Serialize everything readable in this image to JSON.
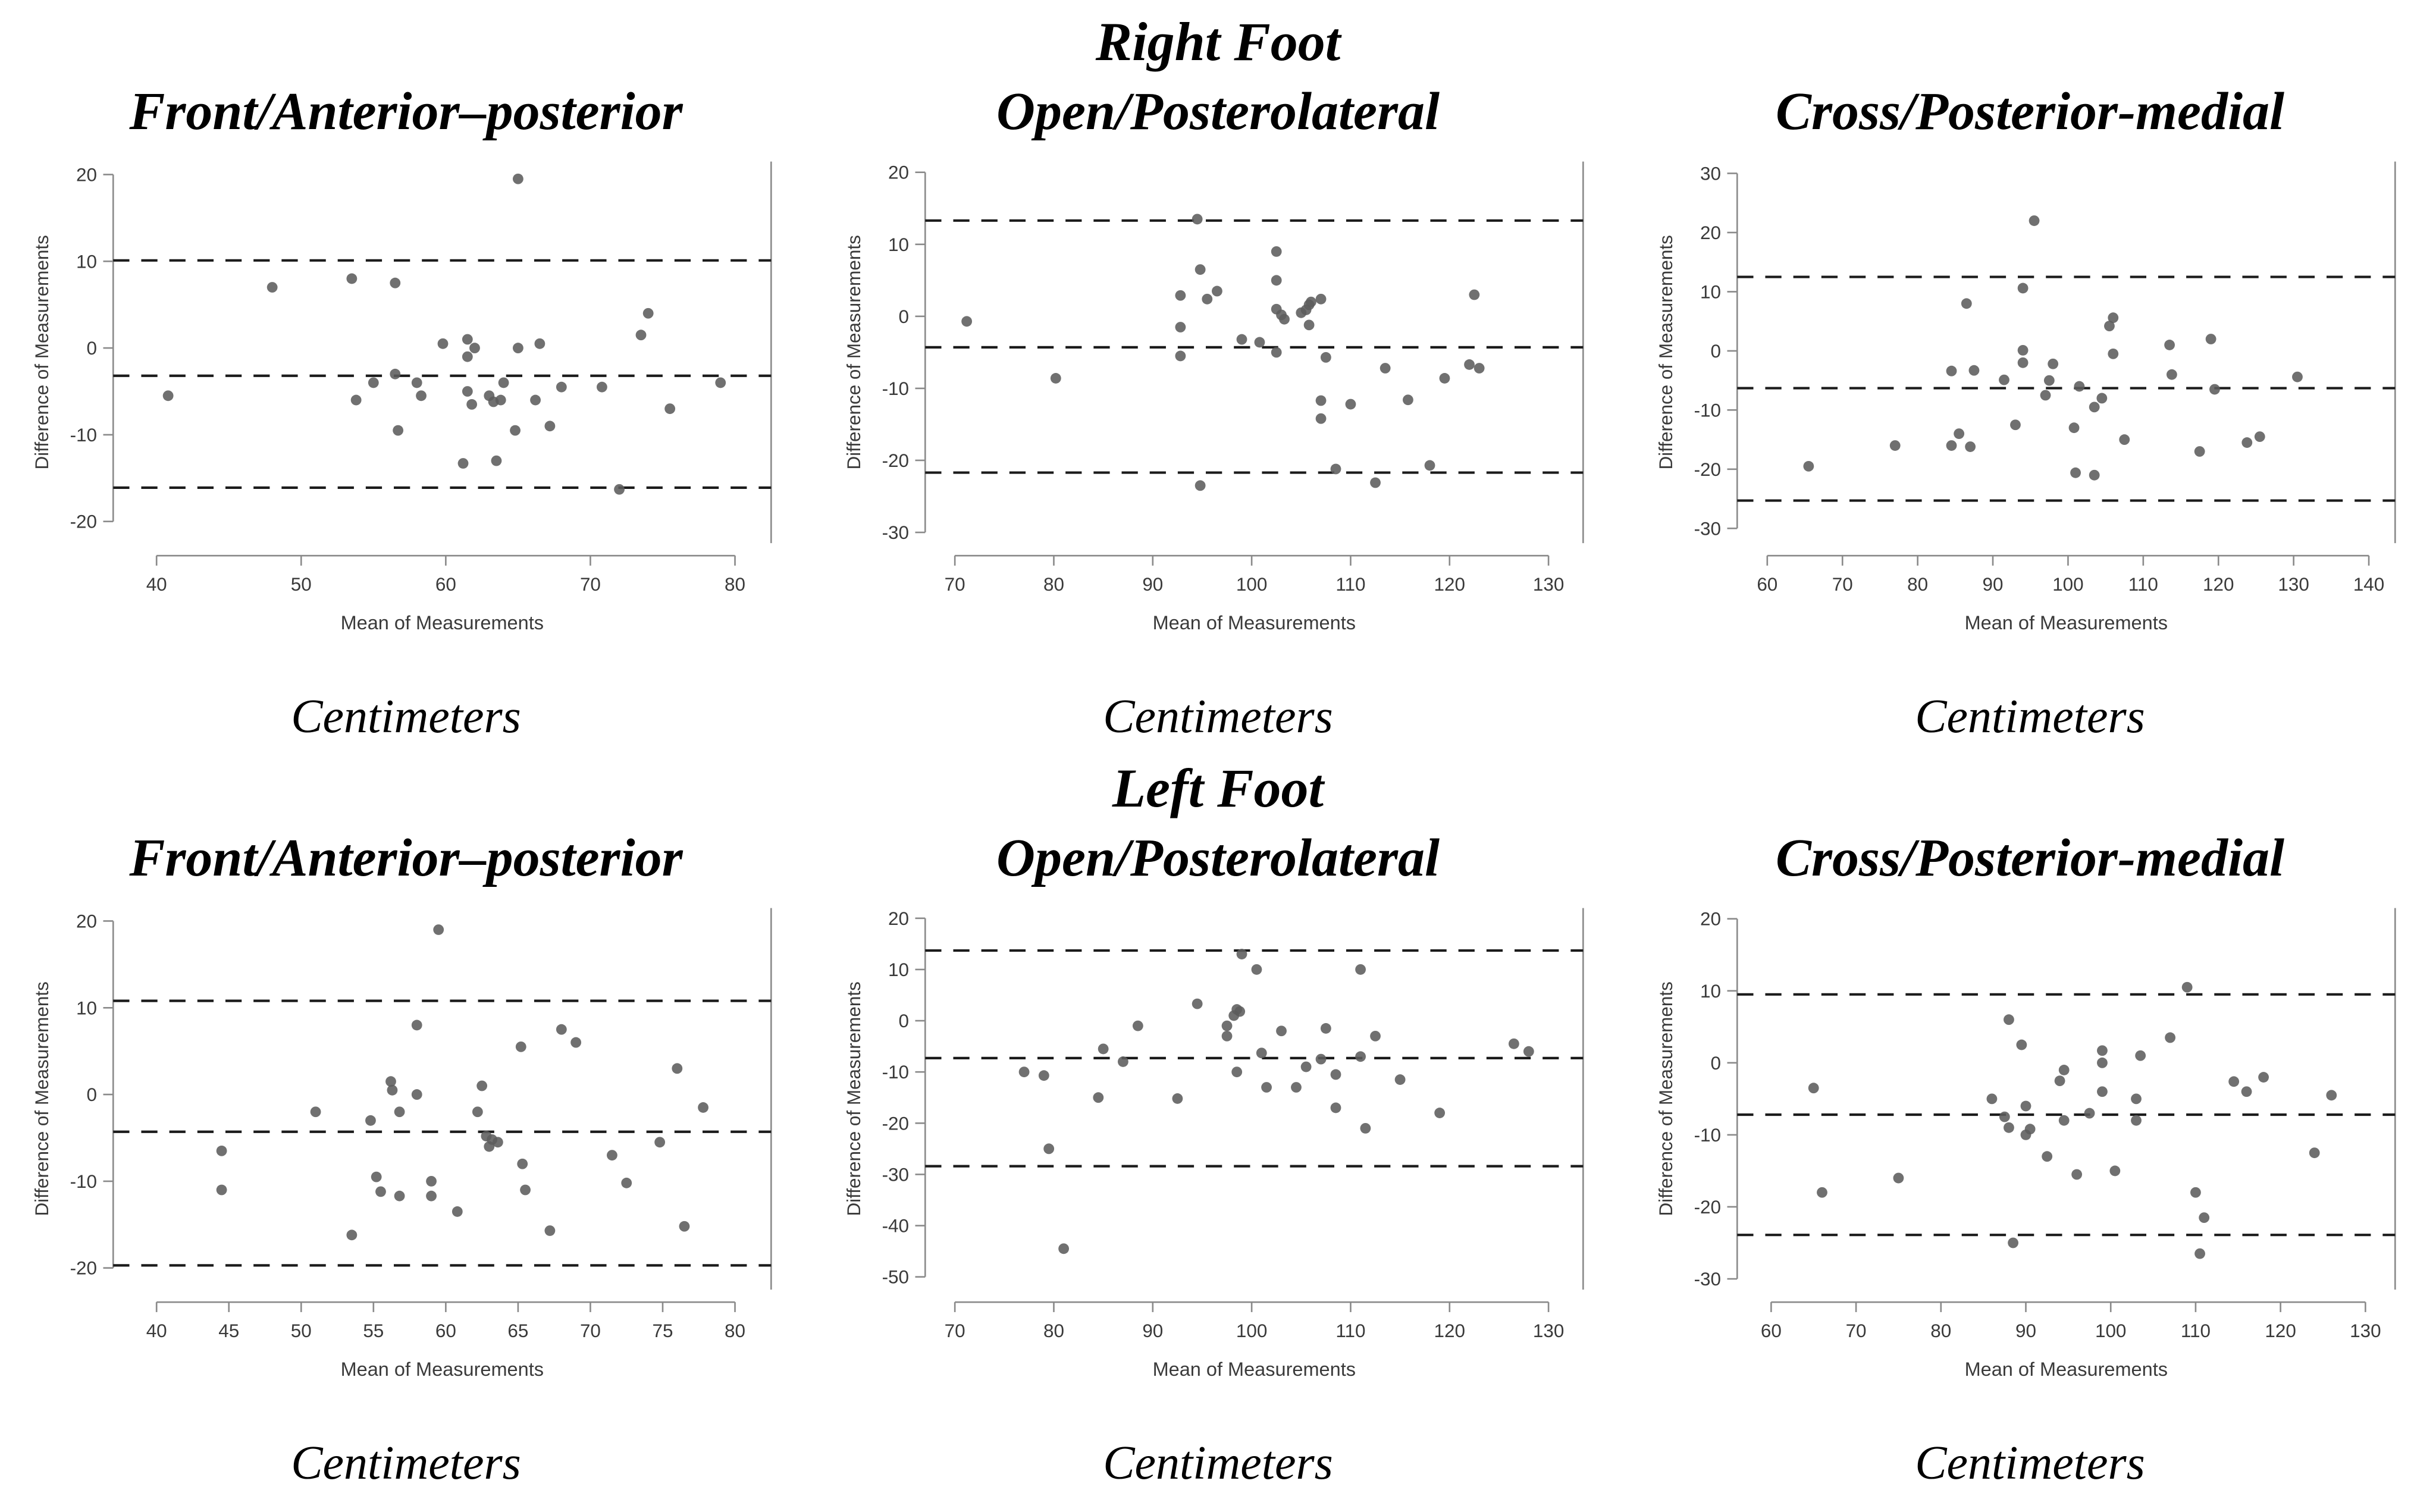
{
  "figure": {
    "row_headers": [
      "Right Foot",
      "Left Foot"
    ],
    "caption": "Centimeters",
    "xlabel": "Mean of Measurements",
    "ylabel": "Difference of Measurements",
    "colors": {
      "background": "#ffffff",
      "point": "#5c5c5c",
      "dashed_line": "#1b1b1b",
      "axis_line": "#8a8a8a",
      "tick_text": "#3a3a3a",
      "title_text": "#000000"
    }
  },
  "chart_data": [
    {
      "type": "scatter",
      "foot": "Right Foot",
      "title": "Front/Anterior–posterior",
      "xlabel": "Mean of Measurements",
      "ylabel": "Difference of Measurements",
      "units": "Centimeters",
      "xlim": [
        37,
        82.5
      ],
      "xticks": [
        40,
        50,
        60,
        70,
        80
      ],
      "ylim": [
        -22.5,
        21.5
      ],
      "yticks": [
        -20,
        -10,
        0,
        10,
        20
      ],
      "dashed_lines": {
        "upper_loa": 10.1,
        "mean": -3.2,
        "lower_loa": -16.1
      },
      "points": [
        [
          40.8,
          -5.5
        ],
        [
          48,
          7
        ],
        [
          53.5,
          8
        ],
        [
          56.5,
          7.5
        ],
        [
          65,
          19.5
        ],
        [
          74,
          4
        ],
        [
          73.5,
          1.5
        ],
        [
          59.8,
          0.5
        ],
        [
          61.5,
          1
        ],
        [
          62,
          0
        ],
        [
          61.5,
          -1
        ],
        [
          65,
          0
        ],
        [
          66.5,
          0.5
        ],
        [
          53.8,
          -6
        ],
        [
          55,
          -4
        ],
        [
          56.5,
          -3
        ],
        [
          58,
          -4
        ],
        [
          58.3,
          -5.5
        ],
        [
          61.5,
          -5
        ],
        [
          61.8,
          -6.5
        ],
        [
          63,
          -5.5
        ],
        [
          63.3,
          -6.2
        ],
        [
          63.8,
          -6
        ],
        [
          64,
          -4
        ],
        [
          66.2,
          -6
        ],
        [
          68,
          -4.5
        ],
        [
          70.8,
          -4.5
        ],
        [
          79,
          -4
        ],
        [
          75.5,
          -7
        ],
        [
          67.2,
          -9
        ],
        [
          64.8,
          -9.5
        ],
        [
          56.7,
          -9.5
        ],
        [
          61.2,
          -13.3
        ],
        [
          63.5,
          -13
        ],
        [
          72,
          -16.3
        ]
      ]
    },
    {
      "type": "scatter",
      "foot": "Right Foot",
      "title": "Open/Posterolateral",
      "xlabel": "Mean of Measurements",
      "ylabel": "Difference of Measurements",
      "units": "Centimeters",
      "xlim": [
        67,
        133.5
      ],
      "xticks": [
        70,
        80,
        90,
        100,
        110,
        120,
        130
      ],
      "ylim": [
        -31.5,
        21.5
      ],
      "yticks": [
        -30,
        -20,
        -10,
        0,
        10,
        20
      ],
      "dashed_lines": {
        "upper_loa": 13.3,
        "mean": -4.3,
        "lower_loa": -21.7
      },
      "points": [
        [
          71.2,
          -0.7
        ],
        [
          80.2,
          -8.6
        ],
        [
          92.8,
          2.9
        ],
        [
          92.8,
          -1.5
        ],
        [
          92.8,
          -5.5
        ],
        [
          94.5,
          13.5
        ],
        [
          94.8,
          6.5
        ],
        [
          95.5,
          2.4
        ],
        [
          96.5,
          3.5
        ],
        [
          94.8,
          -23.5
        ],
        [
          99,
          -3.2
        ],
        [
          100.8,
          -3.6
        ],
        [
          102.5,
          9
        ],
        [
          102.5,
          5
        ],
        [
          102.5,
          1
        ],
        [
          103,
          0.2
        ],
        [
          103.3,
          -0.4
        ],
        [
          102.5,
          -5
        ],
        [
          105,
          0.5
        ],
        [
          105.5,
          0.9
        ],
        [
          105.8,
          1.6
        ],
        [
          106,
          2
        ],
        [
          107,
          2.4
        ],
        [
          105.8,
          -1.2
        ],
        [
          107.5,
          -5.7
        ],
        [
          107,
          -11.7
        ],
        [
          107,
          -14.2
        ],
        [
          108.5,
          -21.2
        ],
        [
          110,
          -12.2
        ],
        [
          112.5,
          -23.1
        ],
        [
          113.5,
          -7.2
        ],
        [
          115.8,
          -11.6
        ],
        [
          118,
          -20.7
        ],
        [
          119.5,
          -8.6
        ],
        [
          122,
          -6.7
        ],
        [
          123,
          -7.2
        ],
        [
          122.5,
          3
        ]
      ]
    },
    {
      "type": "scatter",
      "foot": "Right Foot",
      "title": "Cross/Posterior-medial",
      "xlabel": "Mean of Measurements",
      "ylabel": "Difference of Measurements",
      "units": "Centimeters",
      "xlim": [
        56,
        143.5
      ],
      "xticks": [
        60,
        70,
        80,
        90,
        100,
        110,
        120,
        130,
        140
      ],
      "ylim": [
        -32.5,
        32
      ],
      "yticks": [
        -30,
        -20,
        -10,
        0,
        10,
        20,
        30
      ],
      "dashed_lines": {
        "upper_loa": 12.5,
        "mean": -6.3,
        "lower_loa": -25.3
      },
      "points": [
        [
          65.5,
          -19.5
        ],
        [
          77,
          -16
        ],
        [
          84.5,
          -16
        ],
        [
          87,
          -16.2
        ],
        [
          85.5,
          -14
        ],
        [
          84.5,
          -3.4
        ],
        [
          87.5,
          -3.3
        ],
        [
          86.5,
          8
        ],
        [
          91.5,
          -4.9
        ],
        [
          93,
          -12.5
        ],
        [
          94,
          10.6
        ],
        [
          95.5,
          22
        ],
        [
          94,
          0.1
        ],
        [
          94,
          -2
        ],
        [
          97.5,
          -5
        ],
        [
          98,
          -2.2
        ],
        [
          97,
          -7.5
        ],
        [
          100.8,
          -13
        ],
        [
          101,
          -20.6
        ],
        [
          103.5,
          -21
        ],
        [
          101.5,
          -6
        ],
        [
          103.5,
          -9.5
        ],
        [
          104.5,
          -8
        ],
        [
          106,
          5.6
        ],
        [
          105.5,
          4.2
        ],
        [
          106,
          -0.5
        ],
        [
          107.5,
          -15
        ],
        [
          113.5,
          1
        ],
        [
          113.8,
          -4
        ],
        [
          117.5,
          -17
        ],
        [
          119,
          2
        ],
        [
          119.5,
          -6.5
        ],
        [
          123.8,
          -15.5
        ],
        [
          125.5,
          -14.5
        ],
        [
          130.5,
          -4.4
        ]
      ]
    },
    {
      "type": "scatter",
      "foot": "Left Foot",
      "title": "Front/Anterior–posterior",
      "xlabel": "Mean of Measurements",
      "ylabel": "Difference of Measurements",
      "units": "Centimeters",
      "xlim": [
        37,
        82.5
      ],
      "xticks": [
        40,
        45,
        50,
        55,
        60,
        65,
        70,
        75,
        80
      ],
      "ylim": [
        -22.5,
        21.5
      ],
      "yticks": [
        -20,
        -10,
        0,
        10,
        20
      ],
      "dashed_lines": {
        "upper_loa": 10.8,
        "mean": -4.3,
        "lower_loa": -19.7
      },
      "points": [
        [
          44.5,
          -6.5
        ],
        [
          44.5,
          -11
        ],
        [
          51,
          -2
        ],
        [
          53.5,
          -16.2
        ],
        [
          54.8,
          -3
        ],
        [
          55.2,
          -9.5
        ],
        [
          55.5,
          -11.2
        ],
        [
          56.2,
          1.5
        ],
        [
          56.3,
          0.5
        ],
        [
          56.8,
          -2
        ],
        [
          56.8,
          -11.7
        ],
        [
          58,
          8
        ],
        [
          58,
          0
        ],
        [
          59,
          -10
        ],
        [
          59,
          -11.7
        ],
        [
          59.5,
          19
        ],
        [
          60.8,
          -13.5
        ],
        [
          62.2,
          -2
        ],
        [
          62.5,
          1
        ],
        [
          62.8,
          -4.8
        ],
        [
          63.2,
          -5.2
        ],
        [
          63,
          -6
        ],
        [
          63.6,
          -5.5
        ],
        [
          65.2,
          5.5
        ],
        [
          65.3,
          -8
        ],
        [
          65.5,
          -11
        ],
        [
          67.2,
          -15.7
        ],
        [
          68,
          7.5
        ],
        [
          69,
          6
        ],
        [
          71.5,
          -7
        ],
        [
          72.5,
          -10.2
        ],
        [
          74.8,
          -5.5
        ],
        [
          76,
          3
        ],
        [
          76.5,
          -15.2
        ],
        [
          77.8,
          -1.5
        ]
      ]
    },
    {
      "type": "scatter",
      "foot": "Left Foot",
      "title": "Open/Posterolateral",
      "xlabel": "Mean of Measurements",
      "ylabel": "Difference of Measurements",
      "units": "Centimeters",
      "xlim": [
        67,
        133.5
      ],
      "xticks": [
        70,
        80,
        90,
        100,
        110,
        120,
        130
      ],
      "ylim": [
        -52.5,
        22
      ],
      "yticks": [
        -50,
        -40,
        -30,
        -20,
        -10,
        0,
        10,
        20
      ],
      "dashed_lines": {
        "upper_loa": 13.7,
        "mean": -7.3,
        "lower_loa": -28.4
      },
      "points": [
        [
          77,
          -10
        ],
        [
          79,
          -10.7
        ],
        [
          79.5,
          -25
        ],
        [
          81,
          -44.5
        ],
        [
          84.5,
          -15
        ],
        [
          85,
          -5.5
        ],
        [
          87,
          -8
        ],
        [
          88.5,
          -1
        ],
        [
          92.5,
          -15.2
        ],
        [
          94.5,
          3.3
        ],
        [
          97.5,
          -1
        ],
        [
          97.5,
          -3
        ],
        [
          98.2,
          1
        ],
        [
          98.5,
          2.2
        ],
        [
          98.8,
          1.8
        ],
        [
          98.5,
          -10
        ],
        [
          99,
          13
        ],
        [
          100.5,
          10
        ],
        [
          101,
          -6.3
        ],
        [
          101.5,
          -13
        ],
        [
          103,
          -2
        ],
        [
          104.5,
          -13
        ],
        [
          105.5,
          -9
        ],
        [
          107.5,
          -1.5
        ],
        [
          107,
          -7.5
        ],
        [
          108.5,
          -10.5
        ],
        [
          108.5,
          -17
        ],
        [
          111,
          10
        ],
        [
          111,
          -7
        ],
        [
          111.5,
          -21
        ],
        [
          112.5,
          -3
        ],
        [
          115,
          -11.5
        ],
        [
          119,
          -18
        ],
        [
          126.5,
          -4.5
        ],
        [
          128,
          -6
        ]
      ]
    },
    {
      "type": "scatter",
      "foot": "Left Foot",
      "title": "Cross/Posterior-medial",
      "xlabel": "Mean of Measurements",
      "ylabel": "Difference of Measurements",
      "units": "Centimeters",
      "xlim": [
        56,
        133.5
      ],
      "xticks": [
        60,
        70,
        80,
        90,
        100,
        110,
        120,
        130
      ],
      "ylim": [
        -31.5,
        21.5
      ],
      "yticks": [
        -30,
        -20,
        -10,
        0,
        10,
        20
      ],
      "dashed_lines": {
        "upper_loa": 9.5,
        "mean": -7.2,
        "lower_loa": -23.9
      },
      "points": [
        [
          65,
          -3.5
        ],
        [
          66,
          -18
        ],
        [
          75,
          -16
        ],
        [
          86,
          -5
        ],
        [
          87.5,
          -7.5
        ],
        [
          88,
          6
        ],
        [
          88,
          -9
        ],
        [
          88.5,
          -25
        ],
        [
          89.5,
          2.5
        ],
        [
          90,
          -6
        ],
        [
          90,
          -10
        ],
        [
          90.5,
          -9.2
        ],
        [
          92.5,
          -13
        ],
        [
          94,
          -2.5
        ],
        [
          94.5,
          -1
        ],
        [
          94.5,
          -8
        ],
        [
          96,
          -15.5
        ],
        [
          97.5,
          -7
        ],
        [
          99,
          1.7
        ],
        [
          99,
          0
        ],
        [
          99,
          -4
        ],
        [
          100.5,
          -15
        ],
        [
          103,
          -5
        ],
        [
          103,
          -8
        ],
        [
          103.5,
          1
        ],
        [
          107,
          3.5
        ],
        [
          109,
          10.5
        ],
        [
          110,
          -18
        ],
        [
          110.5,
          -26.5
        ],
        [
          111,
          -21.5
        ],
        [
          114.5,
          -2.6
        ],
        [
          116,
          -4
        ],
        [
          118,
          -2
        ],
        [
          124,
          -12.5
        ],
        [
          126,
          -4.5
        ]
      ]
    }
  ]
}
